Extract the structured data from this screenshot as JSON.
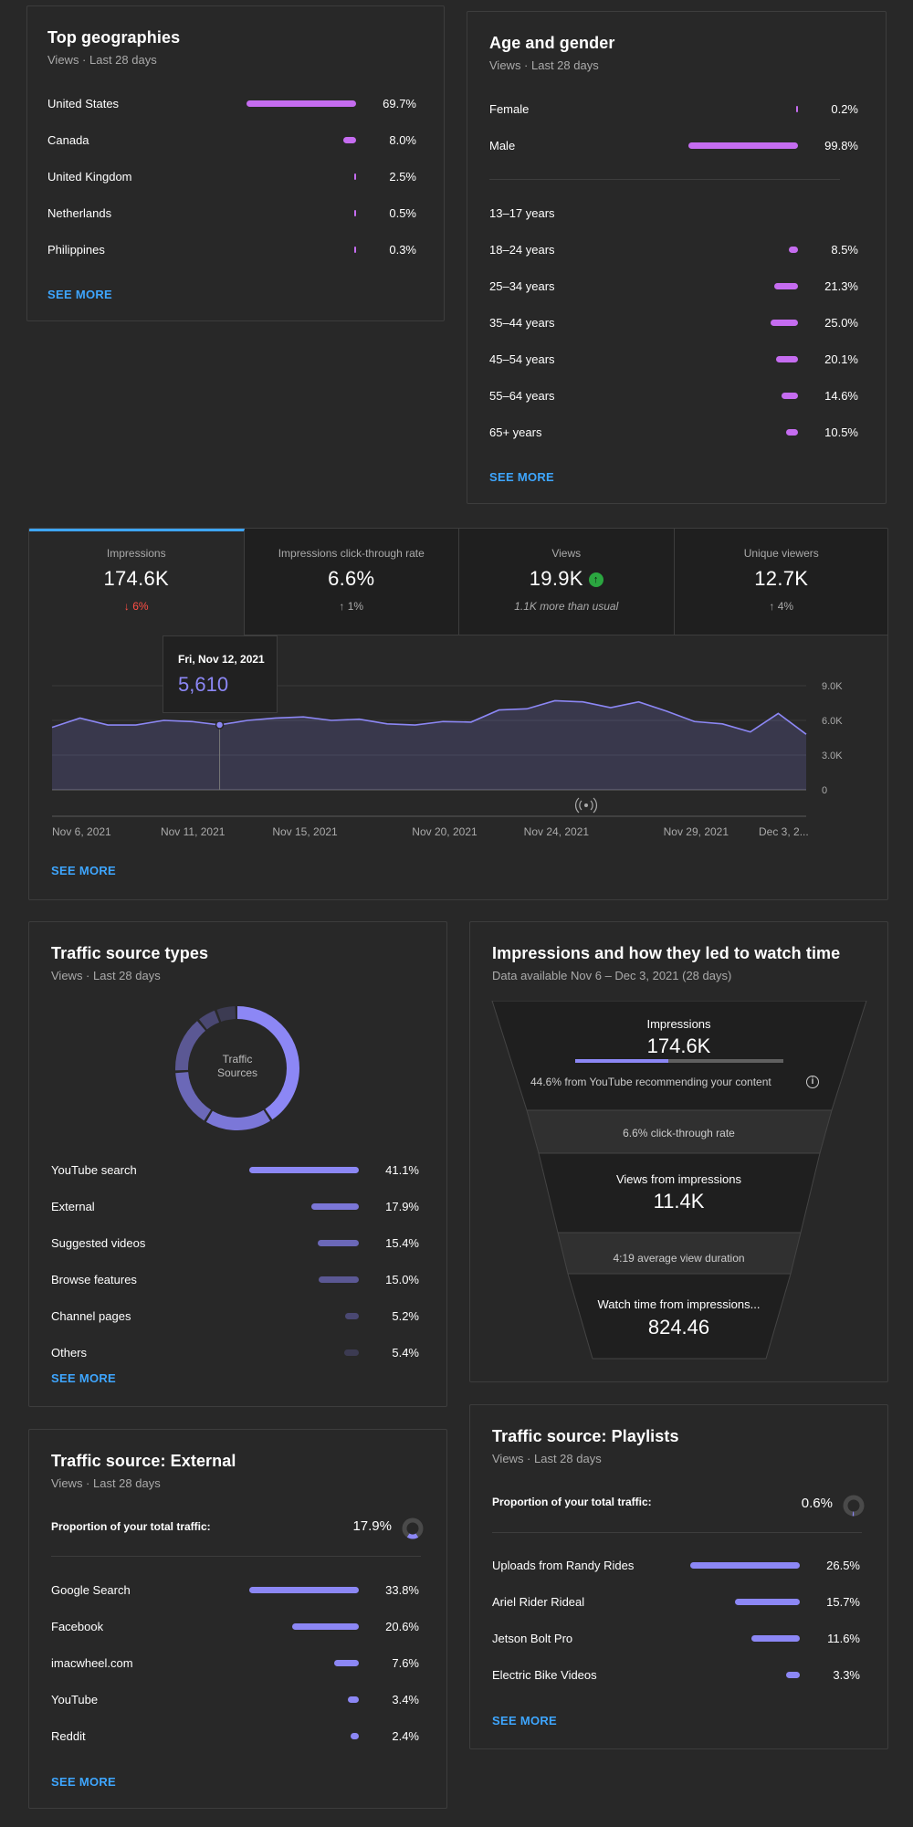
{
  "colors": {
    "accent_link": "#3ea6ff",
    "purple_bar": "#c56cf0",
    "lavender_bar": "#8c87f5",
    "negative": "#ff4e45",
    "positive_badge": "#2ba640"
  },
  "geographies": {
    "title": "Top geographies",
    "subtitle": "Views · Last 28 days",
    "rows": [
      {
        "label": "United States",
        "pct": "69.7%",
        "value": 69.7
      },
      {
        "label": "Canada",
        "pct": "8.0%",
        "value": 8.0
      },
      {
        "label": "United Kingdom",
        "pct": "2.5%",
        "value": 2.5
      },
      {
        "label": "Netherlands",
        "pct": "0.5%",
        "value": 0.5
      },
      {
        "label": "Philippines",
        "pct": "0.3%",
        "value": 0.3
      }
    ],
    "see_more": "SEE MORE"
  },
  "age_gender": {
    "title": "Age and gender",
    "subtitle": "Views · Last 28 days",
    "gender": [
      {
        "label": "Female",
        "pct": "0.2%",
        "value": 0.2
      },
      {
        "label": "Male",
        "pct": "99.8%",
        "value": 99.8
      }
    ],
    "age": [
      {
        "label": "13–17 years",
        "pct": "",
        "value": 0
      },
      {
        "label": "18–24 years",
        "pct": "8.5%",
        "value": 8.5
      },
      {
        "label": "25–34 years",
        "pct": "21.3%",
        "value": 21.3
      },
      {
        "label": "35–44 years",
        "pct": "25.0%",
        "value": 25.0
      },
      {
        "label": "45–54 years",
        "pct": "20.1%",
        "value": 20.1
      },
      {
        "label": "55–64 years",
        "pct": "14.6%",
        "value": 14.6
      },
      {
        "label": "65+ years",
        "pct": "10.5%",
        "value": 10.5
      }
    ],
    "see_more": "SEE MORE"
  },
  "metrics": {
    "tabs": [
      {
        "label": "Impressions",
        "value": "174.6K",
        "delta": "↓ 6%",
        "delta_kind": "negative"
      },
      {
        "label": "Impressions click-through rate",
        "value": "6.6%",
        "delta": "↑ 1%",
        "delta_kind": "neutral"
      },
      {
        "label": "Views",
        "value": "19.9K",
        "delta": "1.1K more than usual",
        "delta_kind": "italic",
        "badge_icon": "arrow-up-icon"
      },
      {
        "label": "Unique viewers",
        "value": "12.7K",
        "delta": "↑ 4%",
        "delta_kind": "neutral"
      }
    ],
    "tooltip": {
      "date": "Fri, Nov 12, 2021",
      "value": "5,610"
    },
    "see_more": "SEE MORE"
  },
  "chart_data": {
    "type": "area",
    "title": "",
    "xlabel": "",
    "ylabel": "",
    "x": [
      "Nov 6",
      "Nov 7",
      "Nov 8",
      "Nov 9",
      "Nov 10",
      "Nov 11",
      "Nov 12",
      "Nov 13",
      "Nov 14",
      "Nov 15",
      "Nov 16",
      "Nov 17",
      "Nov 18",
      "Nov 19",
      "Nov 20",
      "Nov 21",
      "Nov 22",
      "Nov 23",
      "Nov 24",
      "Nov 25",
      "Nov 26",
      "Nov 27",
      "Nov 28",
      "Nov 29",
      "Nov 30",
      "Dec 1",
      "Dec 2",
      "Dec 3"
    ],
    "series": [
      {
        "values": [
          5400,
          6200,
          5600,
          5600,
          6000,
          5900,
          5610,
          6000,
          6200,
          6300,
          6000,
          6100,
          5700,
          5600,
          5900,
          5850,
          6900,
          7000,
          7700,
          7600,
          7100,
          7600,
          6800,
          5900,
          5700,
          5000,
          6600,
          4800
        ]
      }
    ],
    "ylim": [
      0,
      9000
    ],
    "y_ticks": [
      "9.0K",
      "6.0K",
      "3.0K",
      "0"
    ],
    "x_ticks": [
      "Nov 6, 2021",
      "Nov 11, 2021",
      "Nov 15, 2021",
      "Nov 20, 2021",
      "Nov 24, 2021",
      "Nov 29, 2021",
      "Dec 3, 2..."
    ],
    "grid": true,
    "highlight_index": 6
  },
  "traffic_types": {
    "title": "Traffic source types",
    "subtitle": "Views · Last 28 days",
    "donut_label_1": "Traffic",
    "donut_label_2": "Sources",
    "rows": [
      {
        "label": "YouTube search",
        "pct": "41.1%",
        "value": 41.1,
        "color": "#8c87f5"
      },
      {
        "label": "External",
        "pct": "17.9%",
        "value": 17.9,
        "color": "#7b77d8"
      },
      {
        "label": "Suggested videos",
        "pct": "15.4%",
        "value": 15.4,
        "color": "#6b68b8"
      },
      {
        "label": "Browse features",
        "pct": "15.0%",
        "value": 15.0,
        "color": "#5b5894"
      },
      {
        "label": "Channel pages",
        "pct": "5.2%",
        "value": 5.2,
        "color": "#4a4872"
      },
      {
        "label": "Others",
        "pct": "5.4%",
        "value": 5.4,
        "color": "#3c3b52"
      }
    ],
    "see_more": "SEE MORE"
  },
  "funnel": {
    "title": "Impressions and how they led to watch time",
    "subtitle": "Data available Nov 6 – Dec 3, 2021 (28 days)",
    "impressions_label": "Impressions",
    "impressions_value": "174.6K",
    "recommend_share": 44.6,
    "recommend_text": "44.6% from YouTube recommending your content",
    "ctr_text": "6.6% click-through rate",
    "views_label": "Views from impressions",
    "views_value": "11.4K",
    "duration_text": "4:19 average view duration",
    "watch_label": "Watch time from impressions...",
    "watch_value": "824.46"
  },
  "external": {
    "title": "Traffic source: External",
    "subtitle": "Views · Last 28 days",
    "proportion_label": "Proportion of your total traffic:",
    "proportion_value": "17.9%",
    "proportion": 17.9,
    "rows": [
      {
        "label": "Google Search",
        "pct": "33.8%",
        "value": 33.8
      },
      {
        "label": "Facebook",
        "pct": "20.6%",
        "value": 20.6
      },
      {
        "label": "imacwheel.com",
        "pct": "7.6%",
        "value": 7.6
      },
      {
        "label": "YouTube",
        "pct": "3.4%",
        "value": 3.4
      },
      {
        "label": "Reddit",
        "pct": "2.4%",
        "value": 2.4
      }
    ],
    "see_more": "SEE MORE"
  },
  "playlists": {
    "title": "Traffic source: Playlists",
    "subtitle": "Views · Last 28 days",
    "proportion_label": "Proportion of your total traffic:",
    "proportion_value": "0.6%",
    "proportion": 0.6,
    "rows": [
      {
        "label": "Uploads from Randy Rides",
        "pct": "26.5%",
        "value": 26.5
      },
      {
        "label": "Ariel Rider Rideal",
        "pct": "15.7%",
        "value": 15.7
      },
      {
        "label": "Jetson Bolt Pro",
        "pct": "11.6%",
        "value": 11.6
      },
      {
        "label": "Electric Bike Videos",
        "pct": "3.3%",
        "value": 3.3
      }
    ],
    "see_more": "SEE MORE"
  }
}
